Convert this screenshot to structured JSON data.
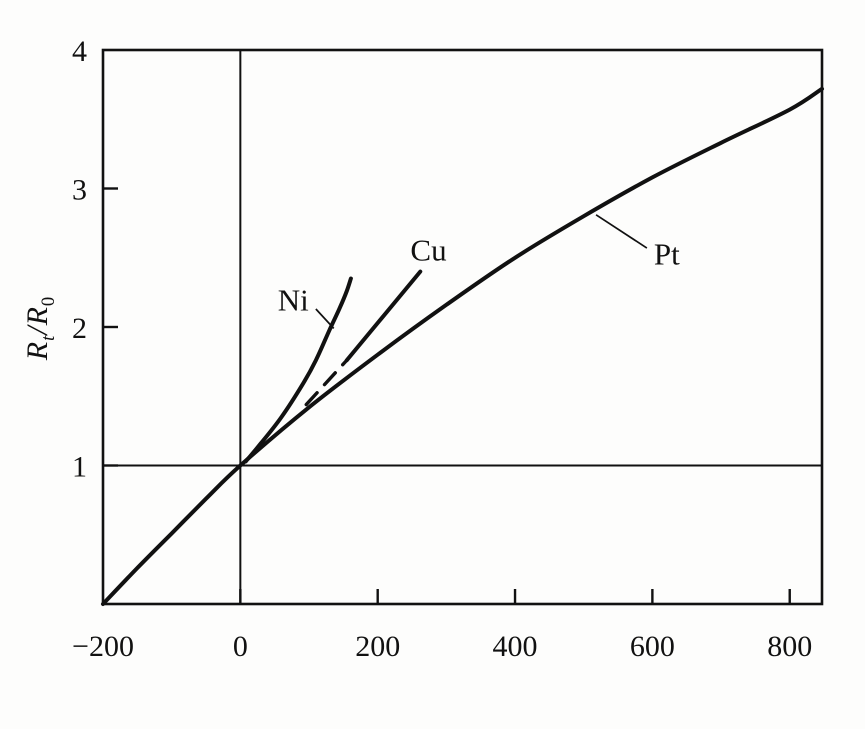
{
  "chart_data": {
    "type": "line",
    "title": "",
    "xlabel": "",
    "ylabel": "Rt/R0",
    "ylabel_parts": [
      {
        "t": "R",
        "sub": false
      },
      {
        "t": "t",
        "sub": true
      },
      {
        "t": "/R",
        "sub": false
      },
      {
        "t": "0",
        "sub": true
      }
    ],
    "xlim": [
      -200,
      847
    ],
    "ylim": [
      0,
      4
    ],
    "grid": false,
    "legend": "none",
    "line_color": "#111111",
    "reference_lines": {
      "vertical_at_x": 0,
      "horizontal_at_y": 1
    },
    "x_ticks": [
      {
        "value": -200,
        "label": "−200"
      },
      {
        "value": 0,
        "label": "0"
      },
      {
        "value": 200,
        "label": "200"
      },
      {
        "value": 400,
        "label": "400"
      },
      {
        "value": 600,
        "label": "600"
      },
      {
        "value": 800,
        "label": "800"
      }
    ],
    "y_ticks": [
      {
        "value": 1,
        "label": "1"
      },
      {
        "value": 2,
        "label": "2"
      },
      {
        "value": 3,
        "label": "3"
      },
      {
        "value": 4,
        "label": "4"
      }
    ],
    "series": [
      {
        "name": "Pt",
        "line_style": "solid",
        "points": [
          [
            -200,
            0
          ],
          [
            -150,
            0.26
          ],
          [
            -100,
            0.51
          ],
          [
            -50,
            0.76
          ],
          [
            0,
            1.0
          ],
          [
            100,
            1.42
          ],
          [
            200,
            1.8
          ],
          [
            300,
            2.16
          ],
          [
            400,
            2.5
          ],
          [
            500,
            2.8
          ],
          [
            600,
            3.08
          ],
          [
            700,
            3.33
          ],
          [
            800,
            3.57
          ],
          [
            847,
            3.72
          ]
        ]
      },
      {
        "name": "Ni",
        "line_style": "solid",
        "points": [
          [
            8,
            1.03
          ],
          [
            30,
            1.16
          ],
          [
            60,
            1.35
          ],
          [
            90,
            1.58
          ],
          [
            110,
            1.76
          ],
          [
            130,
            1.98
          ],
          [
            145,
            2.14
          ],
          [
            155,
            2.26
          ],
          [
            161,
            2.35
          ]
        ]
      },
      {
        "name": "Cu",
        "line_style": "solid",
        "points": [
          [
            155,
            1.76
          ],
          [
            262,
            2.4
          ]
        ]
      },
      {
        "name": "Cu extrapolation",
        "line_style": "dashed",
        "points": [
          [
            96,
            1.44
          ],
          [
            155,
            1.76
          ]
        ]
      }
    ],
    "annotations": [
      {
        "text": "Ni",
        "x": 77,
        "y": 2.2,
        "leader": [
          [
            110,
            2.13
          ],
          [
            136,
            1.99
          ]
        ]
      },
      {
        "text": "Cu",
        "x": 274,
        "y": 2.56,
        "leader": null
      },
      {
        "text": "Pt",
        "x": 621,
        "y": 2.53,
        "leader": [
          [
            518,
            2.81
          ],
          [
            592,
            2.57
          ]
        ]
      }
    ]
  }
}
